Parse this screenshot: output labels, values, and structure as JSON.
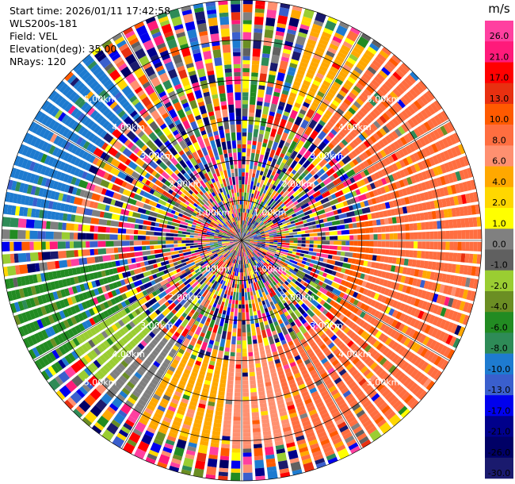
{
  "header": {
    "start_time": "Start time: 2026/01/11 17:42:58",
    "station": "WLS200s-181",
    "field": "Field: VEL",
    "elevation": "Elevation(deg): 35.00",
    "nrays": "NRays: 120"
  },
  "chart_data": {
    "type": "ppi",
    "field": "VEL",
    "nrays": 120,
    "range_rings_km": [
      1,
      2,
      3,
      4,
      5
    ],
    "ring_labels": [
      "1.00km",
      "2.00km",
      "3.00km",
      "4.00km",
      "5.00km"
    ],
    "max_range_km": 6.0,
    "colorbar": {
      "unit": "m/s",
      "ticks": [
        "26.0",
        "21.0",
        "17.0",
        "13.0",
        "10.0",
        "8.0",
        "6.0",
        "4.0",
        "2.0",
        "1.0",
        "0.0",
        "-1.0",
        "-2.0",
        "-4.0",
        "-6.0",
        "-8.0",
        "-10.0",
        "-13.0",
        "-17.0",
        "-21.0",
        "-26.0",
        "-30.0"
      ],
      "colors": [
        "#ff40a0",
        "#ff1a7a",
        "#ff0000",
        "#e83010",
        "#ff5a00",
        "#ff6e40",
        "#ff9070",
        "#ffa800",
        "#ffd700",
        "#ffff00",
        "#808080",
        "#606060",
        "#9acd32",
        "#6b8e23",
        "#228b22",
        "#2e8b57",
        "#1e7bd0",
        "#3a5fcd",
        "#0000ee",
        "#00008b",
        "#000066",
        "#1a1a6e"
      ]
    },
    "sectors": [
      {
        "from_deg": 18,
        "to_deg": 35,
        "value": 4.0,
        "range_km": [
          3.6,
          5.7
        ]
      },
      {
        "from_deg": 35,
        "to_deg": 135,
        "value": 8.0,
        "range_km": [
          3.3,
          6.0
        ]
      },
      {
        "from_deg": 80,
        "to_deg": 130,
        "value": 10.0,
        "range_km": [
          2.7,
          4.0
        ]
      },
      {
        "from_deg": 135,
        "to_deg": 165,
        "value": 8.0,
        "range_km": [
          2.8,
          5.8
        ]
      },
      {
        "from_deg": 165,
        "to_deg": 185,
        "value": 6.0,
        "range_km": [
          2.6,
          5.2
        ]
      },
      {
        "from_deg": 185,
        "to_deg": 210,
        "value": 4.0,
        "range_km": [
          3.0,
          5.2
        ]
      },
      {
        "from_deg": 210,
        "to_deg": 225,
        "value": 0.0,
        "range_km": [
          3.0,
          5.0
        ]
      },
      {
        "from_deg": 225,
        "to_deg": 240,
        "value": -2.0,
        "range_km": [
          3.0,
          5.0
        ]
      },
      {
        "from_deg": 235,
        "to_deg": 260,
        "value": -6.0,
        "range_km": [
          3.2,
          6.0
        ]
      },
      {
        "from_deg": 275,
        "to_deg": 320,
        "value": -10.0,
        "range_km": [
          4.2,
          6.0
        ]
      }
    ]
  }
}
